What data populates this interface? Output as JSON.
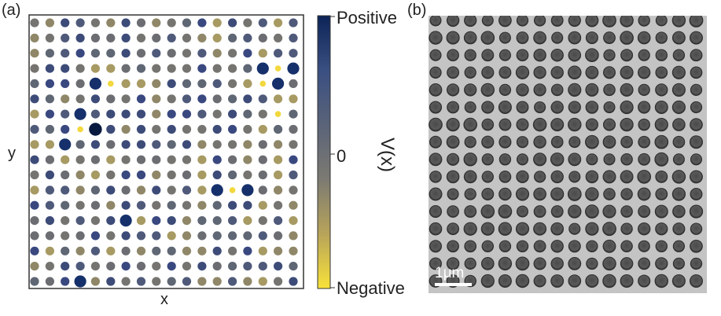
{
  "panels": {
    "a": {
      "label": "(a)",
      "xlabel": "x",
      "ylabel": "y"
    },
    "b": {
      "label": "(b)",
      "scalebar": "1μm"
    }
  },
  "colorbar": {
    "title": "V(x)",
    "top_label": "Positive",
    "mid_label": "0",
    "bottom_label": "Negative",
    "colors": [
      "#f8e23a",
      "#b8a45a",
      "#7c7a72",
      "#5a6378",
      "#3a4f82",
      "#0c2457"
    ]
  },
  "lattice": {
    "rows": 18,
    "cols": 18,
    "large_dots": [
      [
        3,
        15
      ],
      [
        3,
        17
      ],
      [
        4,
        4
      ],
      [
        4,
        16
      ],
      [
        6,
        3
      ],
      [
        7,
        4
      ],
      [
        8,
        2
      ],
      [
        11,
        12
      ],
      [
        11,
        14
      ],
      [
        13,
        6
      ],
      [
        17,
        3
      ]
    ],
    "small_dots": [
      [
        3,
        16
      ],
      [
        4,
        5
      ],
      [
        4,
        15
      ],
      [
        6,
        16
      ],
      [
        7,
        3
      ],
      [
        11,
        13
      ]
    ]
  }
}
